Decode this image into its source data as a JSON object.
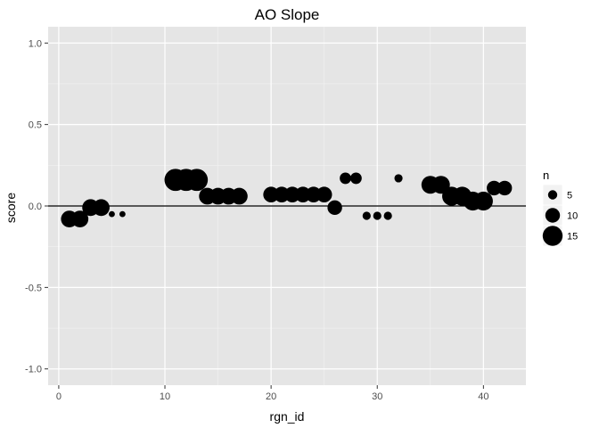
{
  "chart_data": {
    "type": "scatter",
    "title": "AO Slope",
    "xlabel": "rgn_id",
    "ylabel": "score",
    "xlim": [
      -1,
      44
    ],
    "ylim": [
      -1.1,
      1.1
    ],
    "x_ticks": [
      0,
      10,
      20,
      30,
      40
    ],
    "y_ticks": [
      -1.0,
      -0.5,
      0.0,
      0.5,
      1.0
    ],
    "y_tick_labels": [
      "-1.0",
      "-0.5",
      "0.0",
      "0.5",
      "1.0"
    ],
    "x_tick_labels": [
      "0",
      "10",
      "20",
      "30",
      "40"
    ],
    "hline": 0,
    "background": "#e5e5e5",
    "grid": true,
    "point_color": "#000000",
    "legend": {
      "title": "n",
      "placement": "right",
      "entries": [
        {
          "label": "5",
          "n": 5
        },
        {
          "label": "10",
          "n": 10
        },
        {
          "label": "15",
          "n": 15
        }
      ]
    },
    "points": [
      {
        "x": 1,
        "y": -0.08,
        "n": 12
      },
      {
        "x": 2,
        "y": -0.08,
        "n": 12
      },
      {
        "x": 3,
        "y": -0.01,
        "n": 12
      },
      {
        "x": 4,
        "y": -0.01,
        "n": 12
      },
      {
        "x": 5,
        "y": -0.05,
        "n": 2
      },
      {
        "x": 6,
        "y": -0.05,
        "n": 2
      },
      {
        "x": 11,
        "y": 0.16,
        "n": 17
      },
      {
        "x": 12,
        "y": 0.16,
        "n": 17
      },
      {
        "x": 13,
        "y": 0.16,
        "n": 17
      },
      {
        "x": 14,
        "y": 0.06,
        "n": 12
      },
      {
        "x": 15,
        "y": 0.06,
        "n": 12
      },
      {
        "x": 16,
        "y": 0.06,
        "n": 12
      },
      {
        "x": 17,
        "y": 0.06,
        "n": 12
      },
      {
        "x": 20,
        "y": 0.07,
        "n": 11
      },
      {
        "x": 21,
        "y": 0.07,
        "n": 11
      },
      {
        "x": 22,
        "y": 0.07,
        "n": 11
      },
      {
        "x": 23,
        "y": 0.07,
        "n": 11
      },
      {
        "x": 24,
        "y": 0.07,
        "n": 11
      },
      {
        "x": 25,
        "y": 0.07,
        "n": 11
      },
      {
        "x": 26,
        "y": -0.01,
        "n": 10
      },
      {
        "x": 27,
        "y": 0.17,
        "n": 7
      },
      {
        "x": 28,
        "y": 0.17,
        "n": 7
      },
      {
        "x": 29,
        "y": -0.06,
        "n": 4
      },
      {
        "x": 30,
        "y": -0.06,
        "n": 4
      },
      {
        "x": 31,
        "y": -0.06,
        "n": 4
      },
      {
        "x": 32,
        "y": 0.17,
        "n": 4
      },
      {
        "x": 35,
        "y": 0.13,
        "n": 13
      },
      {
        "x": 36,
        "y": 0.13,
        "n": 13
      },
      {
        "x": 37,
        "y": 0.06,
        "n": 14
      },
      {
        "x": 38,
        "y": 0.06,
        "n": 14
      },
      {
        "x": 39,
        "y": 0.03,
        "n": 14
      },
      {
        "x": 40,
        "y": 0.03,
        "n": 14
      },
      {
        "x": 41,
        "y": 0.11,
        "n": 10
      },
      {
        "x": 42,
        "y": 0.11,
        "n": 10
      }
    ]
  }
}
